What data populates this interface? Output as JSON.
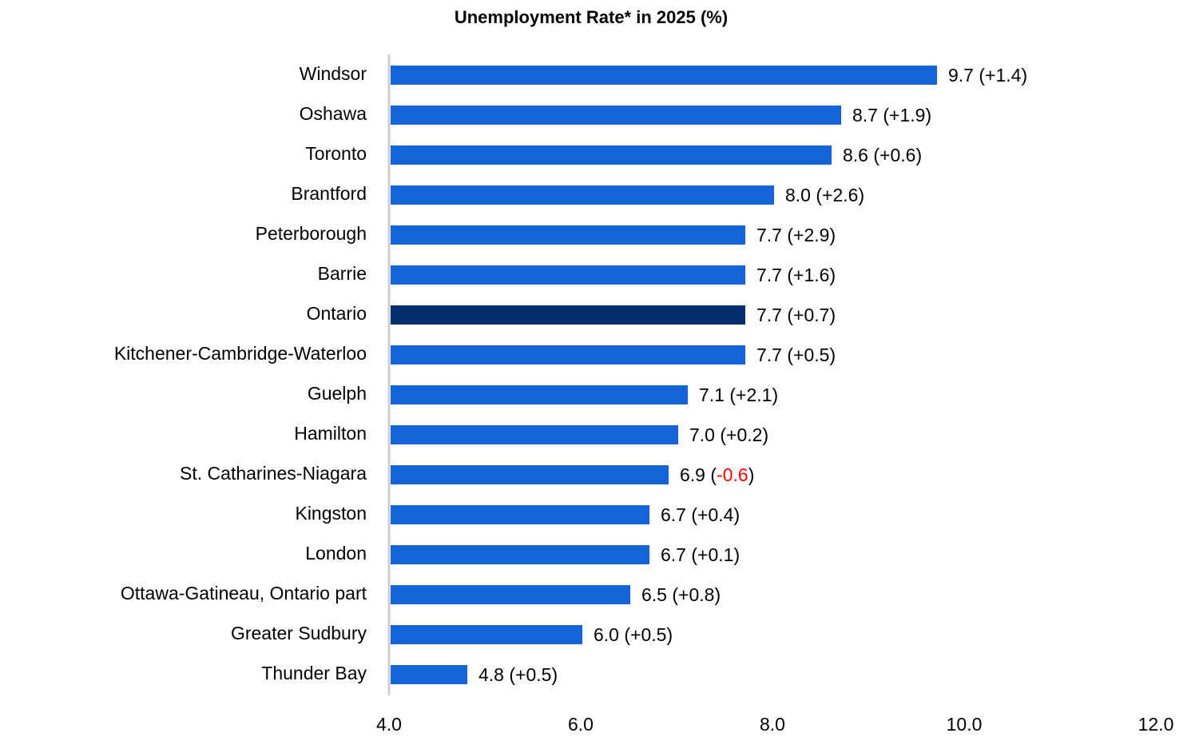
{
  "chart_data": {
    "type": "hbar",
    "title": "Unemployment Rate* in 2025 (%)",
    "categories": [
      "Windsor",
      "Oshawa",
      "Toronto",
      "Brantford",
      "Peterborough",
      "Barrie",
      "Ontario",
      "Kitchener-Cambridge-Waterloo",
      "Guelph",
      "Hamilton",
      "St. Catharines-Niagara",
      "Kingston",
      "London",
      "Ottawa-Gatineau, Ontario part",
      "Greater Sudbury",
      "Thunder Bay"
    ],
    "values": [
      9.7,
      8.7,
      8.6,
      8.0,
      7.7,
      7.7,
      7.7,
      7.7,
      7.1,
      7.0,
      6.9,
      6.7,
      6.7,
      6.5,
      6.0,
      4.8
    ],
    "value_labels": [
      "9.7",
      "8.7",
      "8.6",
      "8.0",
      "7.7",
      "7.7",
      "7.7",
      "7.7",
      "7.1",
      "7.0",
      "6.9",
      "6.7",
      "6.7",
      "6.5",
      "6.0",
      "4.8"
    ],
    "changes": [
      1.4,
      1.9,
      0.6,
      2.6,
      2.9,
      1.6,
      0.7,
      0.5,
      2.1,
      0.2,
      -0.6,
      0.4,
      0.1,
      0.8,
      0.5,
      0.5
    ],
    "change_labels": [
      "+1.4",
      "+1.9",
      "+0.6",
      "+2.6",
      "+2.9",
      "+1.6",
      "+0.7",
      "+0.5",
      "+2.1",
      "+0.2",
      "-0.6",
      "+0.4",
      "+0.1",
      "+0.8",
      "+0.5",
      "+0.5"
    ],
    "color": "#1464d8",
    "highlight": "Ontario",
    "highlight_color": "#052f6b",
    "negative_change_color": "#ff0000",
    "xlim": [
      4,
      12
    ],
    "xticks": [
      {
        "value": 4,
        "label": "4.0"
      },
      {
        "value": 6,
        "label": "6.0"
      },
      {
        "value": 8,
        "label": "8.0"
      },
      {
        "value": 10,
        "label": "10.0"
      },
      {
        "value": 12,
        "label": "12.0"
      }
    ]
  }
}
